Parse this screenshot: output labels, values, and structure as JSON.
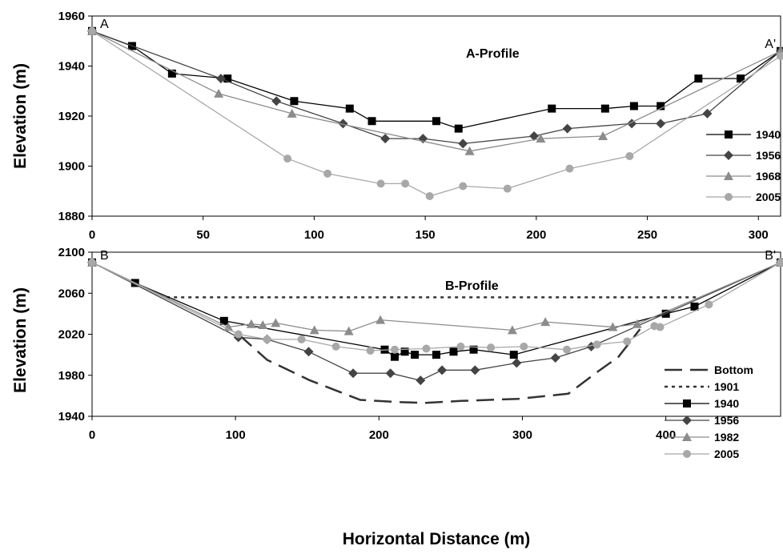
{
  "xlabel": "Horizontal Distance (m)",
  "chart_data": [
    {
      "type": "line",
      "title": "A-Profile",
      "ylabel": "Elevation (m)",
      "xlim": [
        0,
        310
      ],
      "ylim": [
        1880,
        1960
      ],
      "xticks": [
        "0",
        "50",
        "100",
        "150",
        "200",
        "250",
        "300"
      ],
      "yticks": [
        "1880",
        "1900",
        "1920",
        "1940",
        "1960"
      ],
      "point_labels": [
        {
          "text": "A",
          "x": 0,
          "y": 1954,
          "anchor": "start"
        },
        {
          "text": "A'",
          "x": 310,
          "y": 1946,
          "anchor": "end"
        }
      ],
      "legend_position": "right",
      "series": [
        {
          "name": "1940",
          "color": "#000000",
          "marker": "square",
          "x": [
            0,
            18,
            36,
            61,
            91,
            116,
            126,
            155,
            165,
            207,
            231,
            244,
            256,
            273,
            292,
            310
          ],
          "y": [
            1954,
            1948,
            1937,
            1935,
            1926,
            1923,
            1918,
            1918,
            1915,
            1923,
            1923,
            1924,
            1924,
            1935,
            1935,
            1946
          ]
        },
        {
          "name": "1956",
          "color": "#444444",
          "marker": "diamond",
          "x": [
            0,
            58,
            83,
            113,
            132,
            149,
            167,
            199,
            214,
            243,
            256,
            277,
            310
          ],
          "y": [
            1954,
            1935,
            1926,
            1917,
            1911,
            1911,
            1909,
            1912,
            1915,
            1917,
            1917,
            1921,
            1946
          ]
        },
        {
          "name": "1968",
          "color": "#8c8c8c",
          "marker": "triangle",
          "x": [
            0,
            57,
            90,
            170,
            202,
            230,
            310
          ],
          "y": [
            1954,
            1929,
            1921,
            1906,
            1911,
            1912,
            1946
          ]
        },
        {
          "name": "2005",
          "color": "#a8a8a8",
          "marker": "circle",
          "x": [
            0,
            88,
            106,
            130,
            141,
            152,
            167,
            187,
            215,
            242,
            310
          ],
          "y": [
            1954,
            1903,
            1897,
            1893,
            1893,
            1888,
            1892,
            1891,
            1899,
            1904,
            1944
          ]
        }
      ]
    },
    {
      "type": "line",
      "title": "B-Profile",
      "ylabel": "Elevation (m)",
      "xlim": [
        0,
        480
      ],
      "ylim": [
        1940,
        2100
      ],
      "xticks": [
        "0",
        "100",
        "200",
        "300",
        "400"
      ],
      "yticks": [
        "1940",
        "1980",
        "2020",
        "2060",
        "2100"
      ],
      "point_labels": [
        {
          "text": "B",
          "x": 0,
          "y": 2090,
          "anchor": "start"
        },
        {
          "text": "B'",
          "x": 480,
          "y": 2090,
          "anchor": "end"
        }
      ],
      "legend_position": "right",
      "series": [
        {
          "name": "Bottom",
          "color": "#333333",
          "marker": "none",
          "dash": "long",
          "x": [
            102,
            122,
            152,
            187,
            212,
            232,
            257,
            297,
            332,
            352,
            367,
            382
          ],
          "y": [
            2020,
            1995,
            1975,
            1956,
            1954,
            1953,
            1955,
            1957,
            1962,
            1983,
            1998,
            2025
          ]
        },
        {
          "name": "1901",
          "color": "#333333",
          "marker": "none",
          "dash": "dot",
          "x": [
            52,
            422
          ],
          "y": [
            2056,
            2056
          ]
        },
        {
          "name": "1940",
          "color": "#000000",
          "marker": "square",
          "x": [
            0,
            30,
            92,
            204,
            211,
            218,
            225,
            240,
            252,
            266,
            294,
            400,
            420,
            480
          ],
          "y": [
            2090,
            2070,
            2033,
            2005,
            1998,
            2003,
            2000,
            2000,
            2003,
            2005,
            2000,
            2040,
            2047,
            2090
          ]
        },
        {
          "name": "1956",
          "color": "#444444",
          "marker": "diamond",
          "x": [
            0,
            102,
            122,
            151,
            182,
            208,
            229,
            244,
            267,
            296,
            323,
            348,
            480
          ],
          "y": [
            2090,
            2017,
            2015,
            2003,
            1982,
            1982,
            1975,
            1985,
            1985,
            1992,
            1997,
            2008,
            2090
          ]
        },
        {
          "name": "1982",
          "color": "#8c8c8c",
          "marker": "triangle",
          "x": [
            0,
            95,
            111,
            119,
            128,
            155,
            179,
            201,
            293,
            316,
            363,
            380,
            480
          ],
          "y": [
            2090,
            2027,
            2030,
            2029,
            2031,
            2024,
            2023,
            2034,
            2024,
            2032,
            2027,
            2030,
            2090
          ]
        },
        {
          "name": "2005",
          "color": "#a8a8a8",
          "marker": "circle",
          "x": [
            0,
            102,
            122,
            146,
            170,
            194,
            211,
            233,
            257,
            278,
            301,
            331,
            352,
            373,
            392,
            396,
            430,
            480
          ],
          "y": [
            2090,
            2020,
            2015,
            2015,
            2008,
            2004,
            2005,
            2006,
            2008,
            2007,
            2008,
            2005,
            2010,
            2013,
            2028,
            2027,
            2049,
            2090
          ]
        }
      ]
    }
  ]
}
